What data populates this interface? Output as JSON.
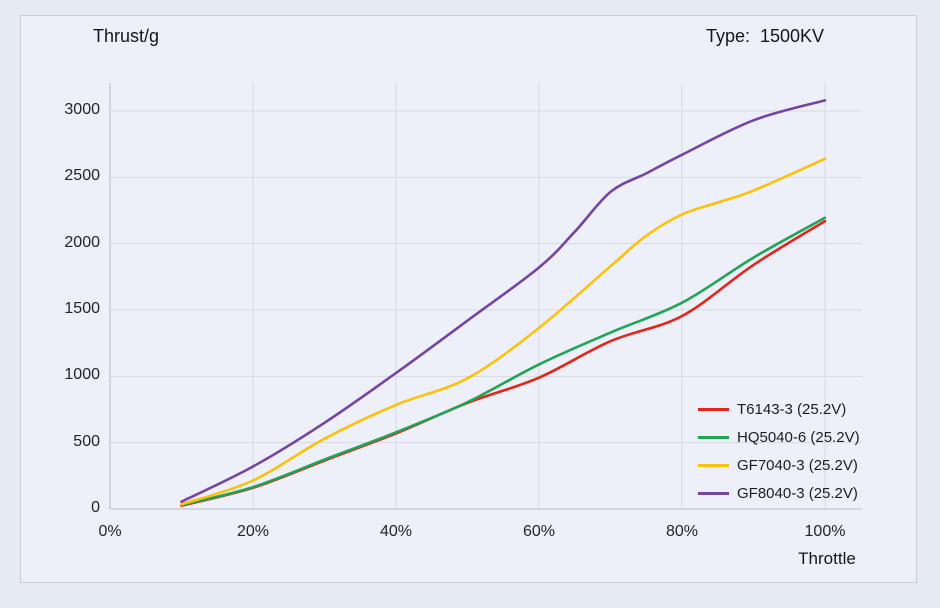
{
  "header": {
    "title": "Thrust/g",
    "type_label": "Type:  1500KV"
  },
  "chart_data": {
    "type": "line",
    "title": "Thrust/g",
    "xlabel": "Throttle",
    "ylabel": "Thrust/g",
    "xlim": [
      0,
      100
    ],
    "ylim": [
      0,
      3000
    ],
    "grid": true,
    "legend_position": "inside-bottom-right",
    "x_ticks": {
      "values": [
        0,
        20,
        40,
        60,
        80,
        100
      ],
      "labels": [
        "0%",
        "20%",
        "40%",
        "60%",
        "80%",
        "100%"
      ]
    },
    "y_ticks": {
      "values": [
        0,
        500,
        1000,
        1500,
        2000,
        2500,
        3000
      ],
      "labels": [
        "0",
        "500",
        "1000",
        "1500",
        "2000",
        "2500",
        "3000"
      ]
    },
    "series": [
      {
        "name": "T6143-3 (25.2V)",
        "color": "#e3251b",
        "points": [
          [
            10,
            25
          ],
          [
            20,
            160
          ],
          [
            30,
            365
          ],
          [
            40,
            570
          ],
          [
            50,
            800
          ],
          [
            60,
            990
          ],
          [
            70,
            1265
          ],
          [
            80,
            1455
          ],
          [
            90,
            1840
          ],
          [
            100,
            2170
          ]
        ]
      },
      {
        "name": "HQ5040-6 (25.2V)",
        "color": "#22a457",
        "points": [
          [
            10,
            30
          ],
          [
            20,
            165
          ],
          [
            30,
            372
          ],
          [
            40,
            578
          ],
          [
            50,
            805
          ],
          [
            60,
            1090
          ],
          [
            70,
            1330
          ],
          [
            80,
            1555
          ],
          [
            90,
            1895
          ],
          [
            100,
            2195
          ]
        ]
      },
      {
        "name": "GF7040-3 (25.2V)",
        "color": "#fcc10a",
        "points": [
          [
            10,
            35
          ],
          [
            20,
            215
          ],
          [
            30,
            530
          ],
          [
            40,
            785
          ],
          [
            50,
            985
          ],
          [
            60,
            1365
          ],
          [
            70,
            1830
          ],
          [
            75,
            2060
          ],
          [
            80,
            2220
          ],
          [
            85,
            2310
          ],
          [
            90,
            2400
          ],
          [
            100,
            2640
          ]
        ]
      },
      {
        "name": "GF8040-3 (25.2V)",
        "color": "#7544a4",
        "points": [
          [
            10,
            55
          ],
          [
            20,
            320
          ],
          [
            30,
            650
          ],
          [
            40,
            1025
          ],
          [
            50,
            1420
          ],
          [
            60,
            1820
          ],
          [
            65,
            2090
          ],
          [
            70,
            2390
          ],
          [
            75,
            2530
          ],
          [
            80,
            2670
          ],
          [
            90,
            2930
          ],
          [
            100,
            3080
          ]
        ]
      }
    ],
    "colors": {
      "background_outer": "#e6eaf2",
      "background_card": "#edf0f8",
      "gridline": "#d7dae1",
      "axis": "#c3c7cf",
      "text": "#15151f"
    }
  }
}
